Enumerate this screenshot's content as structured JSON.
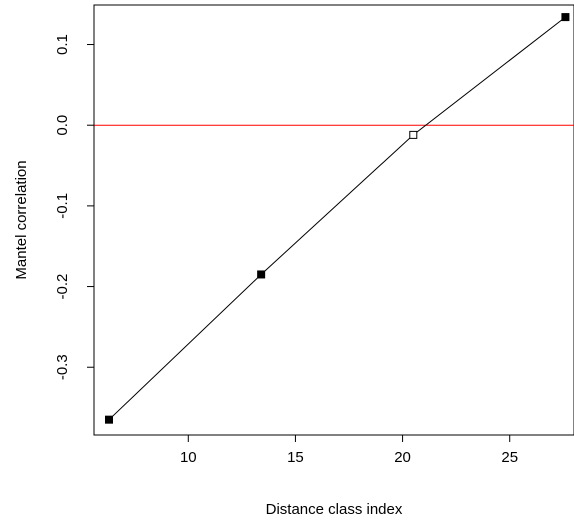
{
  "chart_data": {
    "type": "line",
    "title": "",
    "xlabel": "Distance class index",
    "ylabel": "Mantel correlation",
    "xlim": [
      5.6,
      28
    ],
    "ylim": [
      -0.384,
      0.149
    ],
    "x_ticks": [
      10,
      15,
      20,
      25
    ],
    "x_tick_labels": [
      "10",
      "15",
      "20",
      "25"
    ],
    "y_ticks": [
      -0.3,
      -0.2,
      -0.1,
      0.0,
      0.1
    ],
    "y_tick_labels": [
      "-0.3",
      "-0.2",
      "-0.1",
      "0.0",
      "0.1"
    ],
    "grid": false,
    "series": [
      {
        "points": [
          {
            "x": 6.3,
            "y": -0.365,
            "filled": true
          },
          {
            "x": 13.4,
            "y": -0.185,
            "filled": true
          },
          {
            "x": 20.5,
            "y": -0.012,
            "filled": false
          },
          {
            "x": 27.6,
            "y": 0.134,
            "filled": true
          }
        ],
        "color": "#000000"
      }
    ],
    "reference_line": {
      "y": 0.0,
      "color": "#ff0000"
    }
  }
}
